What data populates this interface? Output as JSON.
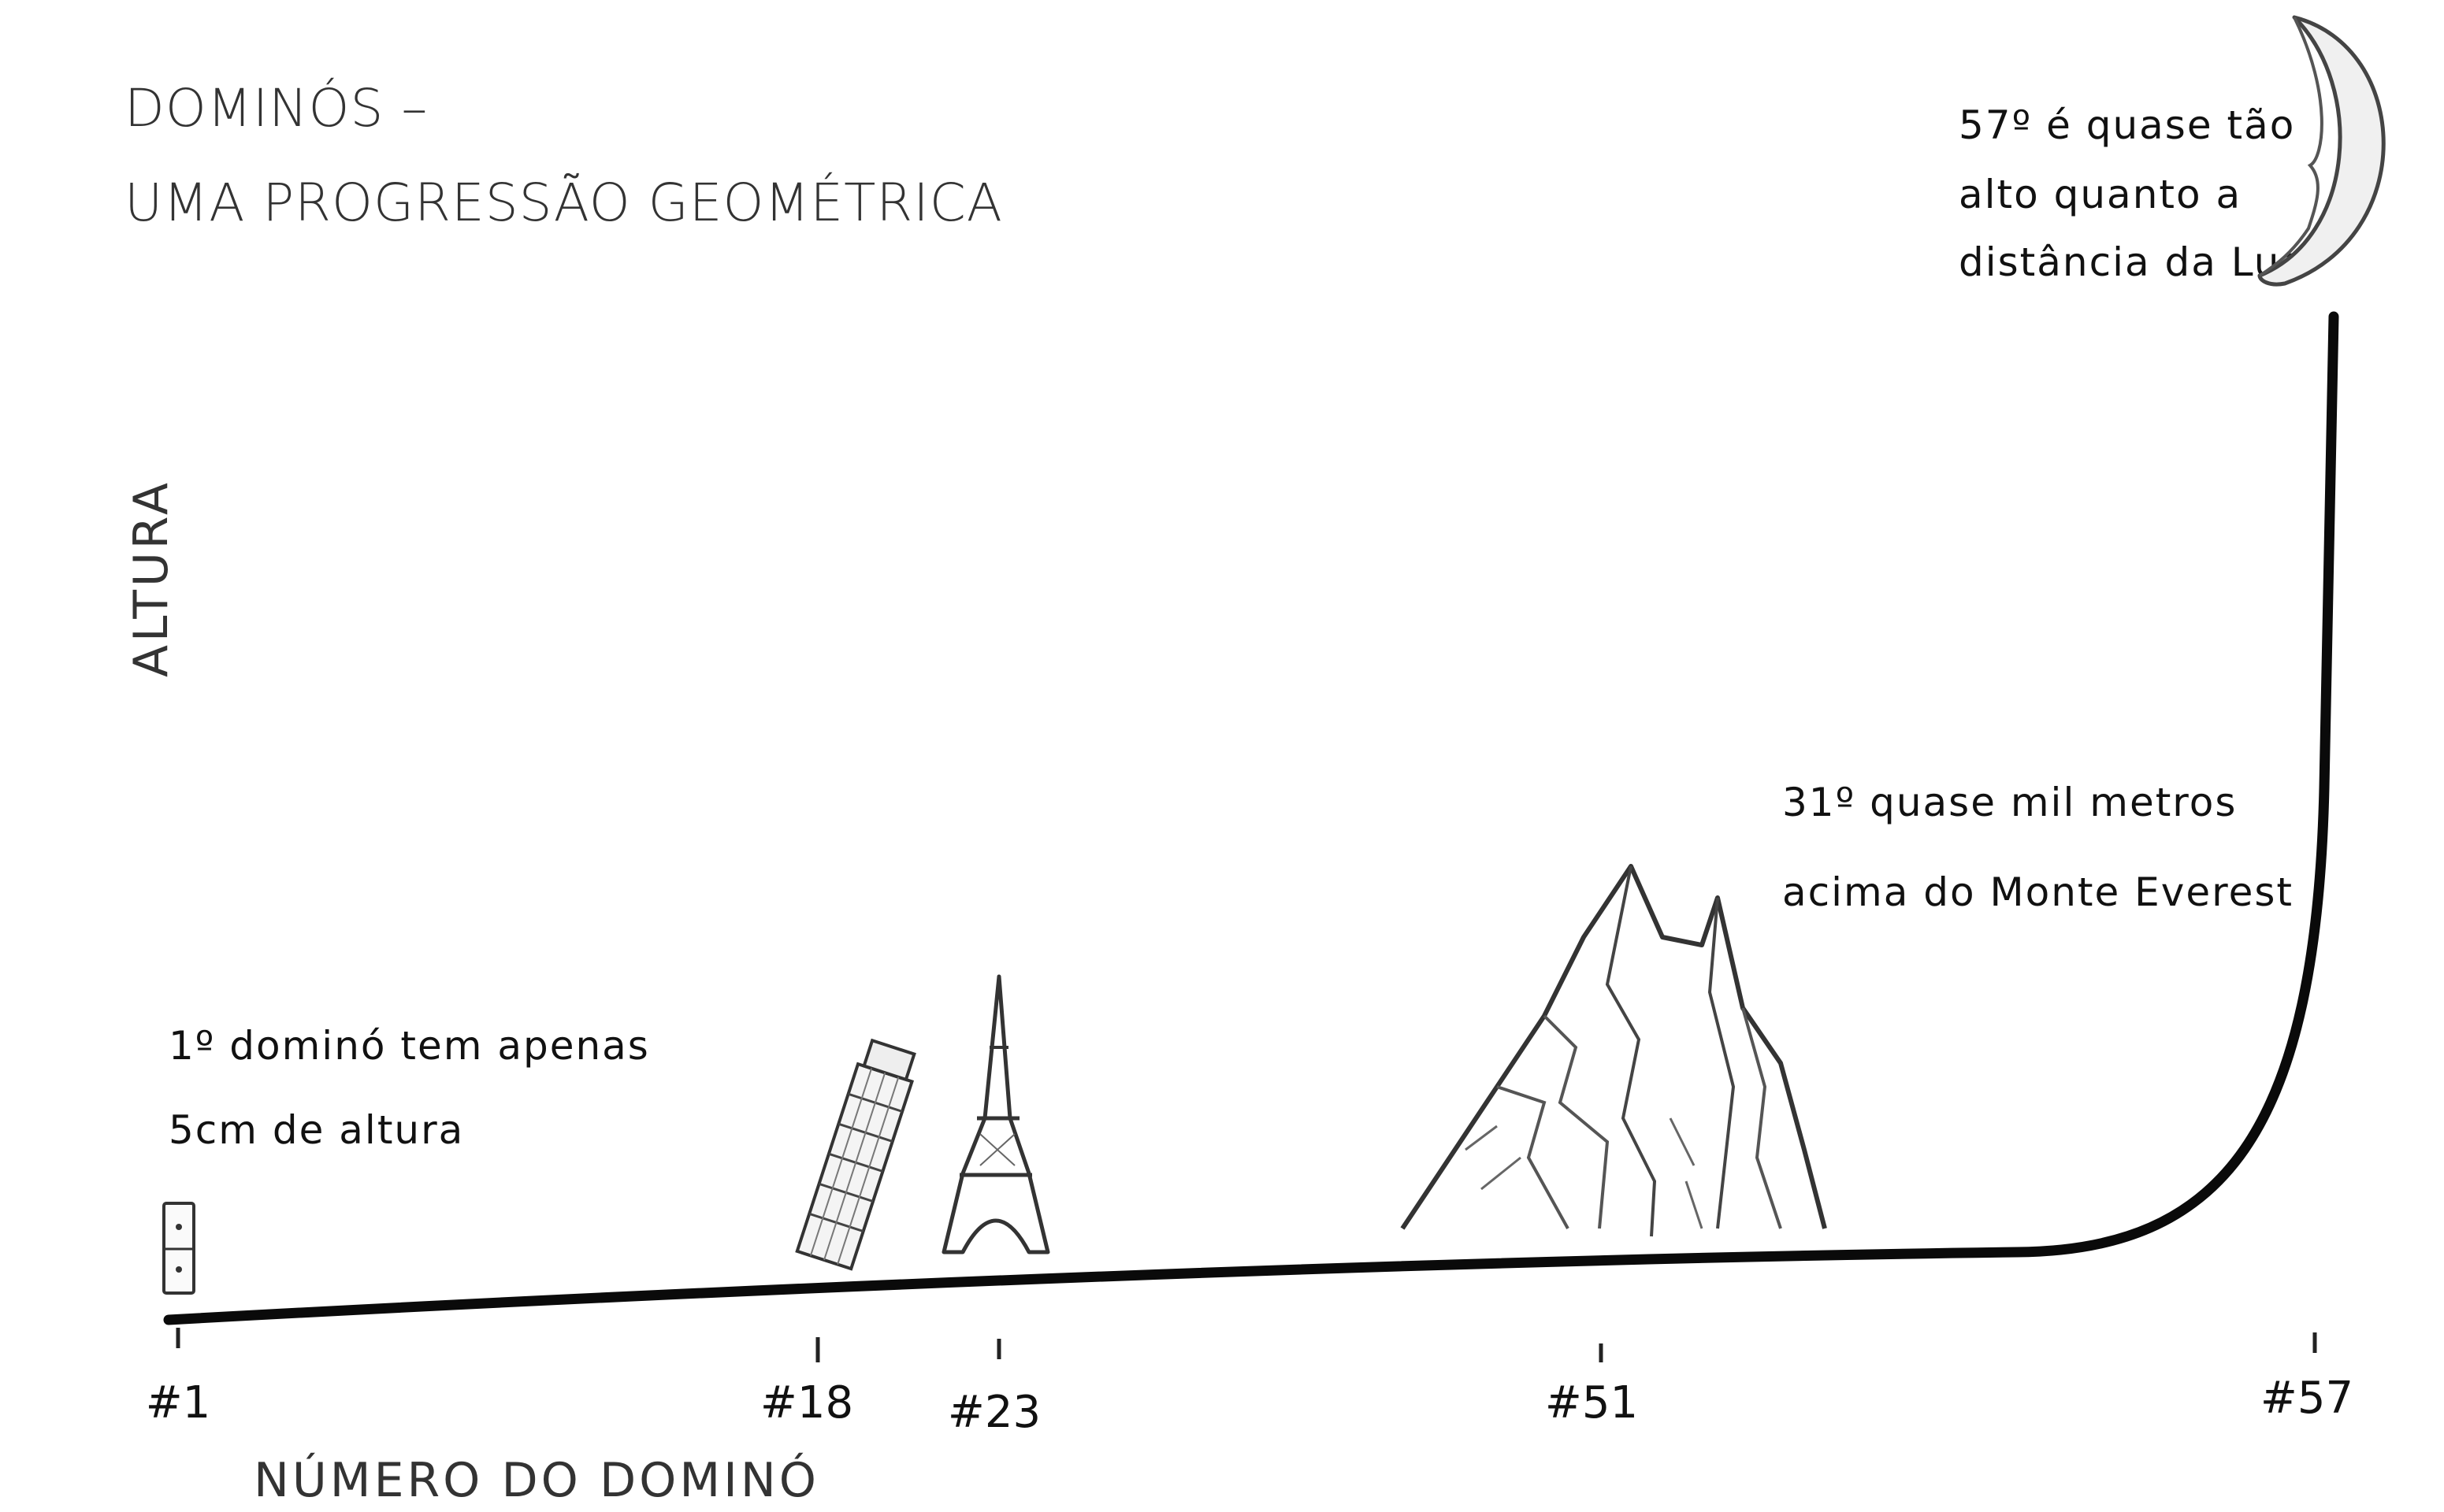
{
  "chart_data": {
    "type": "line",
    "title_line1": "DOMINÓS –",
    "title_line2": "UMA PROGRESSÃO GEOMÉTRICA",
    "xlabel": "NÚMERO DO DOMINÓ",
    "ylabel": "ALTURA",
    "x_ticks": [
      "#1",
      "#18",
      "#23",
      "#51",
      "#57"
    ],
    "x_values": [
      1,
      18,
      23,
      51,
      57
    ],
    "grid": false,
    "annotations": [
      {
        "x": 1,
        "lines": [
          "1º dominó tem apenas",
          "5cm de altura"
        ],
        "icon": "domino-icon"
      },
      {
        "x": 18,
        "lines": [],
        "icon": "leaning-tower-of-pisa-icon"
      },
      {
        "x": 23,
        "lines": [],
        "icon": "eiffel-tower-icon"
      },
      {
        "x": 31,
        "lines": [
          "31º quase mil metros",
          "acima do Monte Everest"
        ],
        "icon": "mountain-icon"
      },
      {
        "x": 57,
        "lines": [
          "57º é quase tão",
          "alto quanto a",
          "distância da Lua"
        ],
        "icon": "moon-icon"
      }
    ]
  }
}
